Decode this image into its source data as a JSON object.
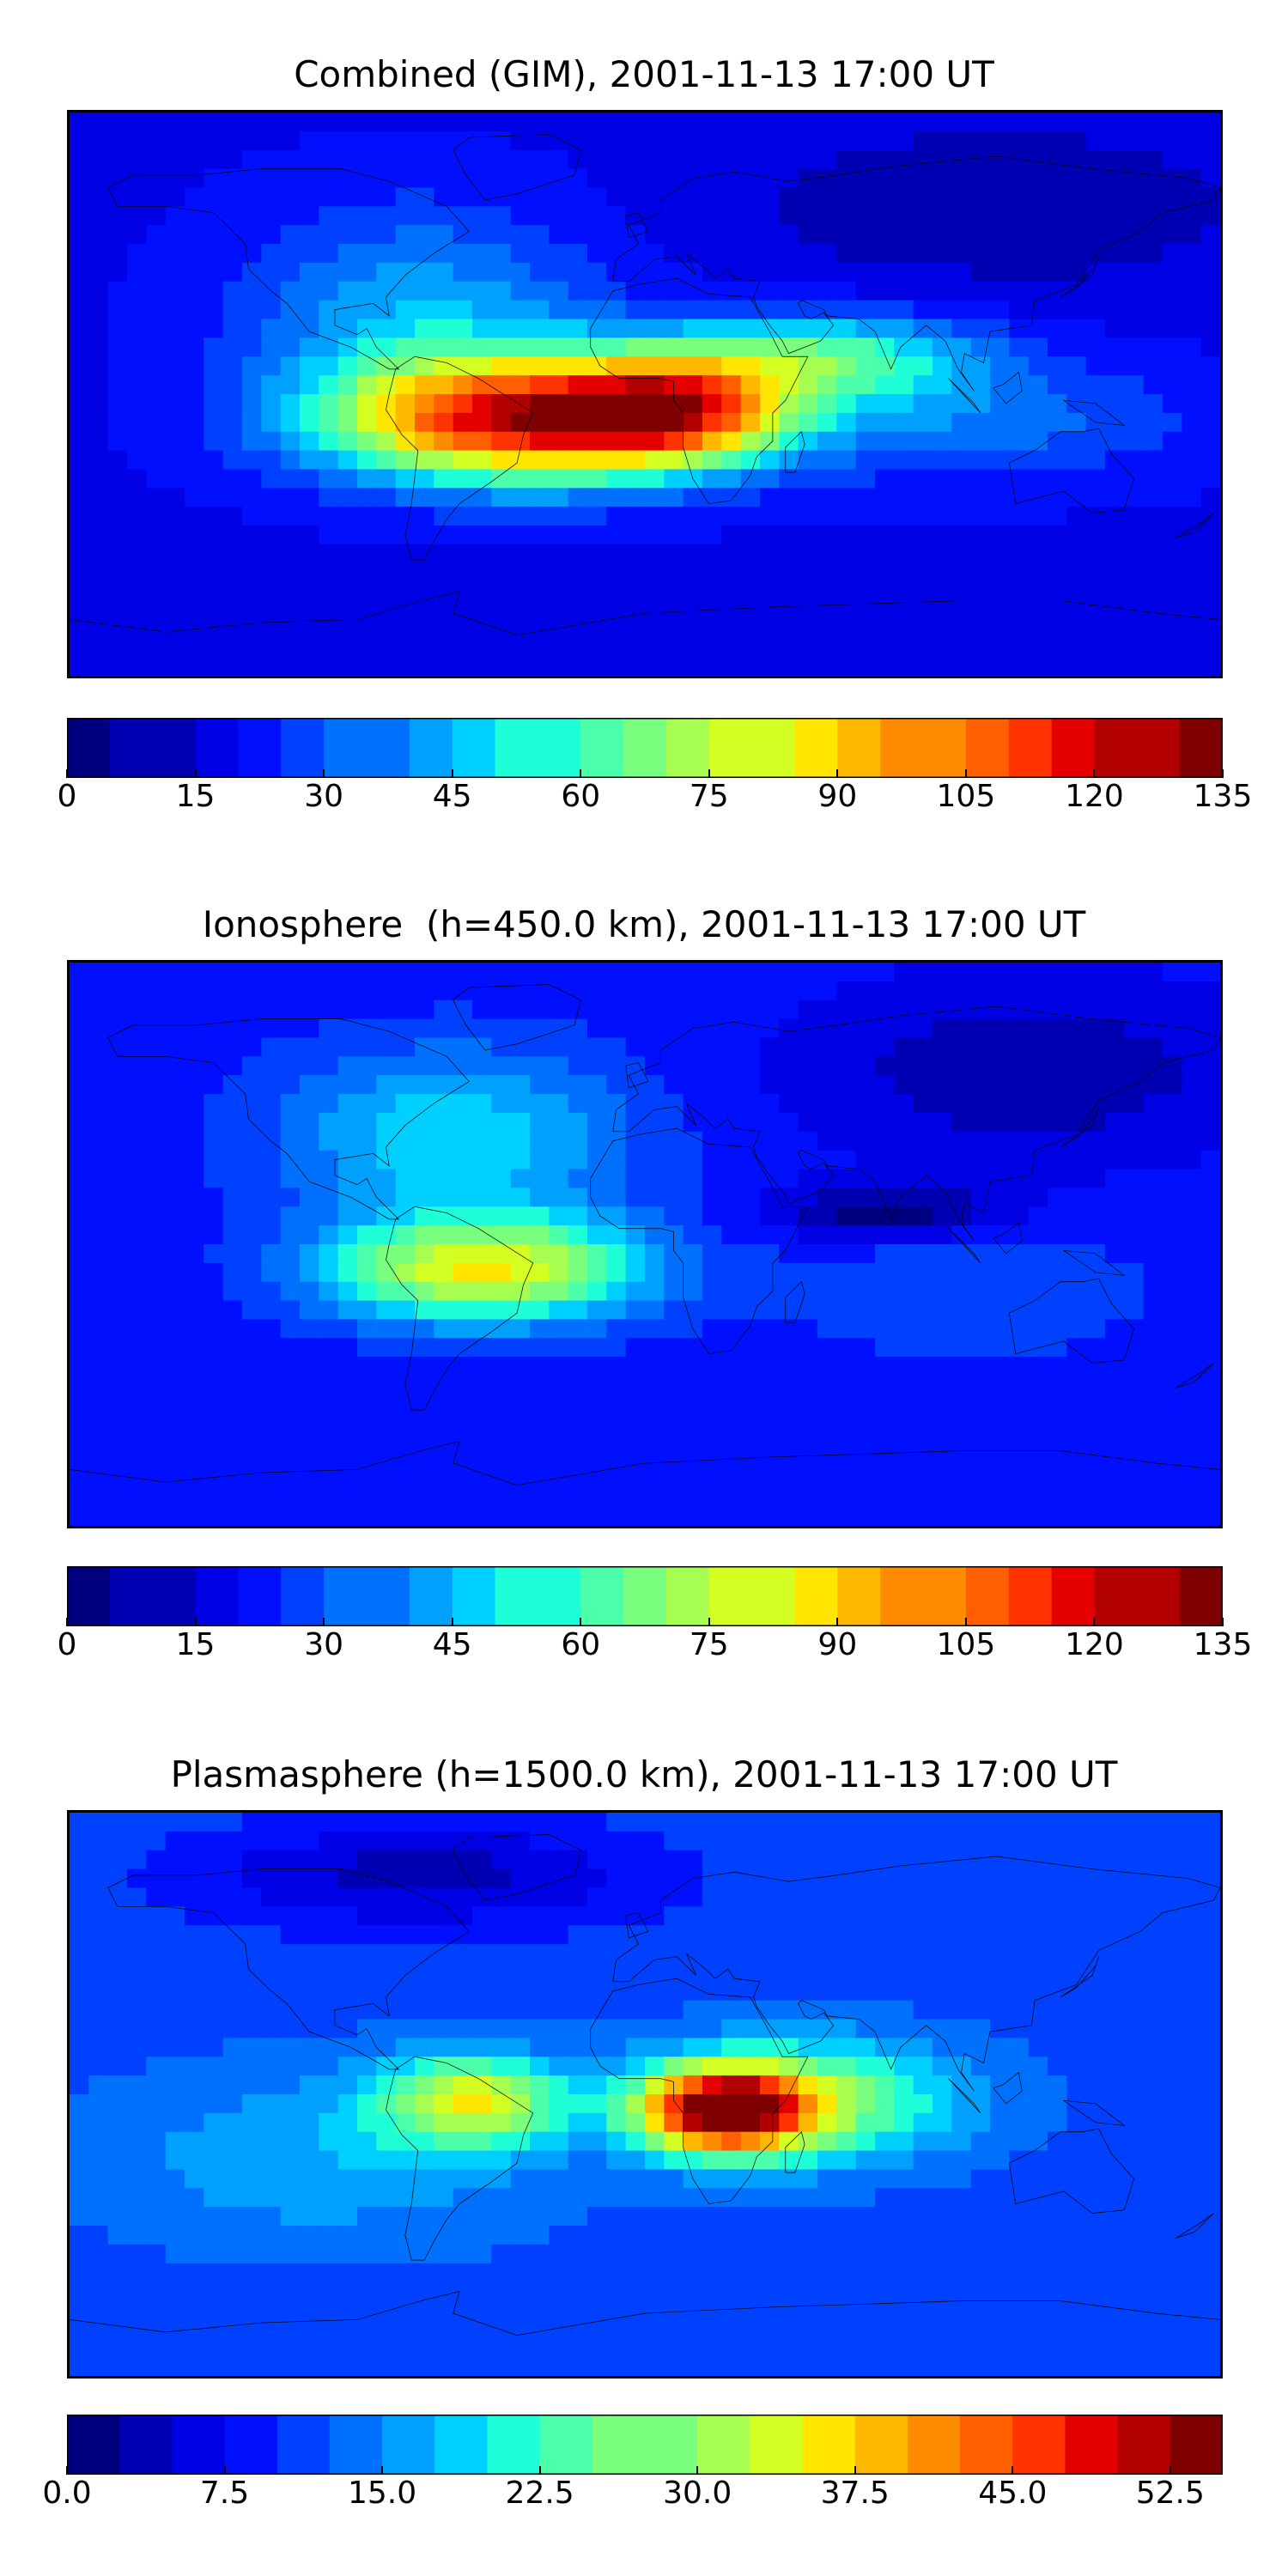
{
  "colors": {
    "jet": [
      "#00007f",
      "#0000b2",
      "#0000e5",
      "#0010ff",
      "#0040ff",
      "#0070ff",
      "#00a0ff",
      "#00d0ff",
      "#1fffd7",
      "#4cffaa",
      "#79ff7d",
      "#a6ff50",
      "#d4ff22",
      "#ffe500",
      "#ffb800",
      "#ff8c00",
      "#ff5f00",
      "#ff3300",
      "#e50000",
      "#b20000",
      "#7f0000"
    ],
    "coastline": "#000000"
  },
  "chart_data": [
    {
      "type": "heatmap",
      "title": "Combined (GIM), 2001-11-13 17:00 UT",
      "colorbar": {
        "min": 0,
        "max": 135,
        "levels": 27,
        "ticks": [
          "0",
          "15",
          "30",
          "45",
          "60",
          "75",
          "90",
          "105",
          "120",
          "135"
        ]
      },
      "approx_peak_value": 130,
      "peak_location": "South America / equatorial Atlantic"
    },
    {
      "type": "heatmap",
      "title": "Ionosphere  (h=450.0 km), 2001-11-13 17:00 UT",
      "colorbar": {
        "min": 0,
        "max": 135,
        "levels": 27,
        "ticks": [
          "0",
          "15",
          "30",
          "45",
          "60",
          "75",
          "90",
          "105",
          "120",
          "135"
        ]
      },
      "approx_peak_value": 95,
      "peak_location": "Northern South America"
    },
    {
      "type": "heatmap",
      "title": "Plasmasphere (h=1500.0 km), 2001-11-13 17:00 UT",
      "colorbar": {
        "min": 0.0,
        "max": 55.0,
        "levels": 22,
        "ticks": [
          "0.0",
          "7.5",
          "15.0",
          "22.5",
          "30.0",
          "37.5",
          "45.0",
          "52.5"
        ]
      },
      "approx_peak_value": 53,
      "peak_location": "Central Africa"
    }
  ]
}
